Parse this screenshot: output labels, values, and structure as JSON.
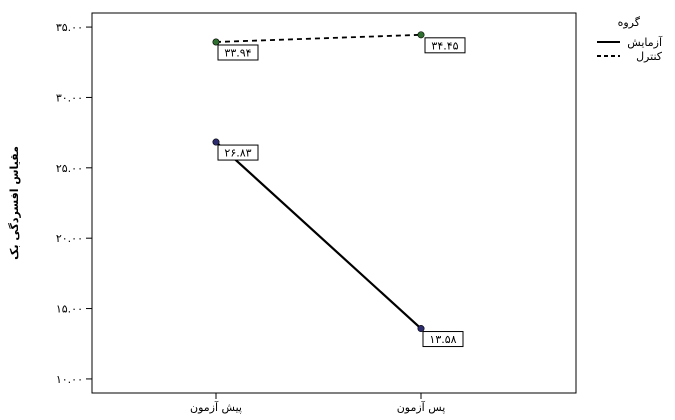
{
  "chart_data": {
    "type": "line",
    "title": "",
    "xlabel": "",
    "ylabel": "مقیاس افسردگی بک",
    "categories": [
      "پیش آزمون",
      "پس آزمون"
    ],
    "ylim": [
      9,
      36
    ],
    "y_ticks": [
      {
        "value": 10,
        "label": "۱۰.۰۰"
      },
      {
        "value": 15,
        "label": "۱۵.۰۰"
      },
      {
        "value": 20,
        "label": "۲۰.۰۰"
      },
      {
        "value": 25,
        "label": "۲۵.۰۰"
      },
      {
        "value": 30,
        "label": "۳۰.۰۰"
      },
      {
        "value": 35,
        "label": "۳۵.۰۰"
      }
    ],
    "grid": false,
    "legend": {
      "title": "گروه",
      "position": "top-right"
    },
    "series": [
      {
        "name": "آزمایش",
        "style": "solid",
        "marker_color": "#2b2b6e",
        "values": [
          26.83,
          13.58
        ],
        "value_labels": [
          "۲۶.۸۳",
          "۱۳.۵۸"
        ]
      },
      {
        "name": "کنترل",
        "style": "dashed",
        "marker_color": "#2e6e2e",
        "values": [
          33.94,
          34.45
        ],
        "value_labels": [
          "۳۳.۹۴",
          "۳۴.۴۵"
        ]
      }
    ]
  }
}
